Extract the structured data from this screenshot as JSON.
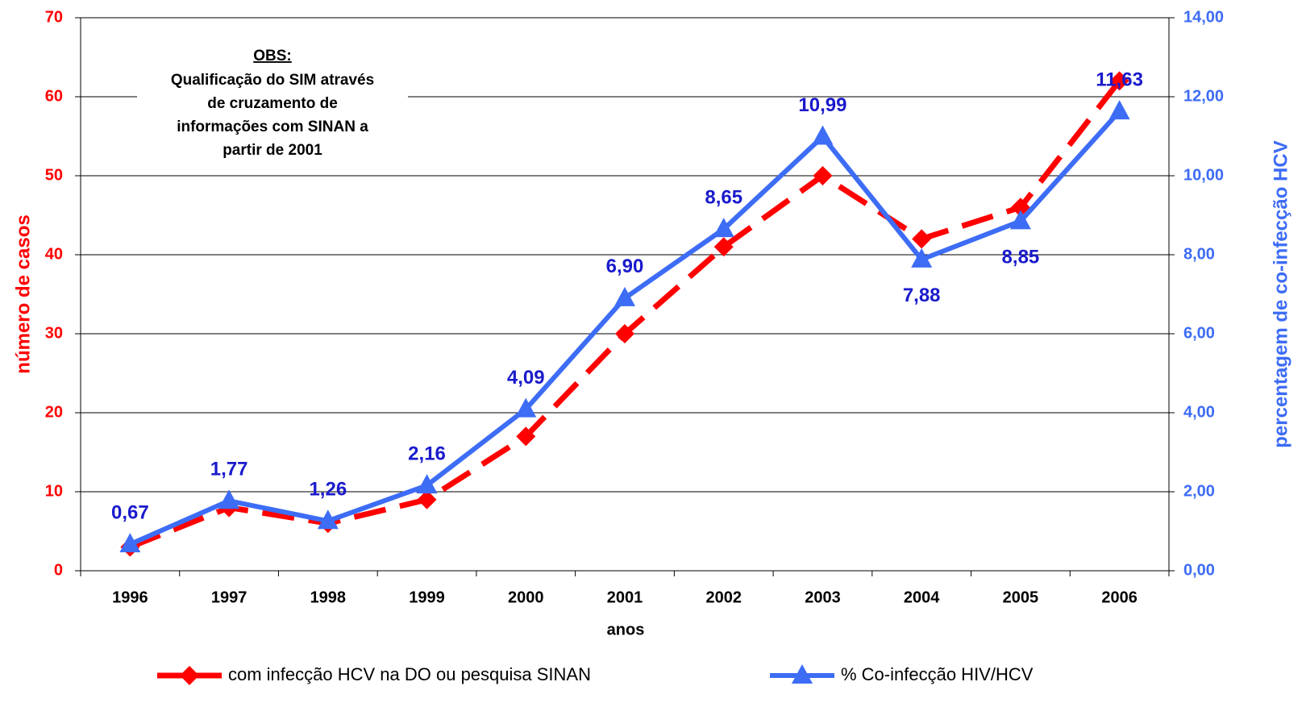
{
  "chart_data": {
    "type": "line",
    "categories": [
      "1996",
      "1997",
      "1998",
      "1999",
      "2000",
      "2001",
      "2002",
      "2003",
      "2004",
      "2005",
      "2006"
    ],
    "series": [
      {
        "name": "com infecção HCV na DO ou pesquisa SINAN",
        "color": "#ff0000",
        "axis": "y",
        "dashed": true,
        "marker": "diamond",
        "values": [
          3,
          8,
          6,
          9,
          17,
          30,
          41,
          50,
          42,
          46,
          62
        ]
      },
      {
        "name": "% Co-infecção HIV/HCV",
        "color": "#3d6cf5",
        "axis": "y2",
        "marker": "triangle",
        "values": [
          0.67,
          1.77,
          1.26,
          2.16,
          4.09,
          6.9,
          8.65,
          10.99,
          7.88,
          8.85,
          11.63
        ],
        "value_labels": [
          "0,67",
          "1,77",
          "1,26",
          "2,16",
          "4,09",
          "6,90",
          "8,65",
          "10,99",
          "7,88",
          "8,85",
          "11,63"
        ]
      }
    ],
    "ylim": [
      0,
      70
    ],
    "yticks": [
      0,
      10,
      20,
      30,
      40,
      50,
      60,
      70
    ],
    "y2lim": [
      0,
      14
    ],
    "y2ticks": [
      {
        "value": 0,
        "label": "0,00"
      },
      {
        "value": 2,
        "label": "2,00"
      },
      {
        "value": 4,
        "label": "4,00"
      },
      {
        "value": 6,
        "label": "6,00"
      },
      {
        "value": 8,
        "label": "8,00"
      },
      {
        "value": 10,
        "label": "10,00"
      },
      {
        "value": 12,
        "label": "12,00"
      },
      {
        "value": 14,
        "label": "14,00"
      }
    ],
    "y_label": "número de casos",
    "y2_label": "percentagem de co-infecção HCV",
    "x_label": "anos",
    "annotation": {
      "header": "OBS:",
      "lines": [
        "Qualificação do SIM através",
        "de cruzamento de",
        "informações com SINAN a",
        "partir de 2001"
      ]
    },
    "grid": true,
    "legend": "bottom"
  }
}
